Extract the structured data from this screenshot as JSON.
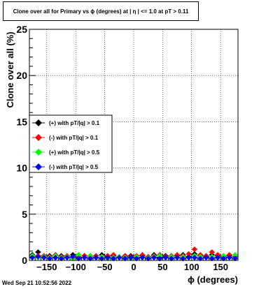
{
  "chart_data": {
    "type": "scatter",
    "title": "Clone  over all for Primary vs ϕ (degrees) at |  η | <= 1.0 at pT > 0.11",
    "xlabel": "ϕ (degrees)",
    "ylabel": "Clone  over all (%)",
    "xlim": [
      -180,
      180
    ],
    "ylim": [
      0,
      25
    ],
    "x_ticks": [
      -150,
      -100,
      -50,
      0,
      50,
      100,
      150
    ],
    "x_tick_labels": [
      "−150",
      "−100",
      "−50",
      "0",
      "50",
      "100",
      "150"
    ],
    "y_ticks": [
      0,
      5,
      10,
      15,
      20,
      25
    ],
    "y_tick_labels": [
      "0",
      "5",
      "10",
      "15",
      "20",
      "25"
    ],
    "grid": true,
    "legend_position": "middle-left",
    "x": [
      -175,
      -165,
      -155,
      -145,
      -135,
      -125,
      -115,
      -105,
      -95,
      -85,
      -75,
      -65,
      -55,
      -45,
      -35,
      -25,
      -15,
      -5,
      5,
      15,
      25,
      35,
      45,
      55,
      65,
      75,
      85,
      95,
      105,
      115,
      125,
      135,
      145,
      155,
      165,
      175
    ],
    "series": [
      {
        "name": "(+) with pT/|q| > 0.1",
        "color": "#000000",
        "values": [
          0.6,
          0.9,
          0.4,
          0.5,
          0.3,
          0.5,
          0.4,
          0.6,
          0.3,
          0.5,
          0.5,
          0.3,
          0.6,
          0.4,
          0.5,
          0.3,
          0.4,
          0.5,
          0.3,
          0.5,
          0.4,
          0.6,
          0.3,
          0.5,
          0.4,
          0.5,
          0.6,
          0.4,
          0.7,
          0.5,
          0.4,
          0.6,
          0.5,
          0.4,
          0.5,
          0.4
        ]
      },
      {
        "name": "(-) with pT/|q| > 0.1",
        "color": "#ff0000",
        "values": [
          0.4,
          0.5,
          0.5,
          0.4,
          0.6,
          0.4,
          0.5,
          0.3,
          0.4,
          0.5,
          0.4,
          0.5,
          0.4,
          0.5,
          0.6,
          0.4,
          0.5,
          0.4,
          0.5,
          0.6,
          0.4,
          0.5,
          0.6,
          0.4,
          0.5,
          0.6,
          0.5,
          0.7,
          1.2,
          0.6,
          0.5,
          0.9,
          0.6,
          0.5,
          0.6,
          0.4
        ]
      },
      {
        "name": "(+) with pT/|q| > 0.5",
        "color": "#00ff00",
        "values": [
          0.5,
          0.3,
          0.4,
          0.3,
          0.5,
          0.3,
          0.4,
          0.2,
          0.6,
          0.3,
          0.5,
          0.3,
          0.4,
          0.2,
          0.3,
          0.4,
          0.3,
          0.2,
          0.4,
          0.3,
          0.3,
          0.4,
          0.5,
          0.3,
          0.4,
          0.3,
          0.4,
          0.3,
          0.5,
          0.4,
          0.3,
          0.4,
          0.3,
          0.5,
          0.3,
          0.6
        ]
      },
      {
        "name": "(-) with pT/|q| > 0.5",
        "color": "#0000ff",
        "values": [
          0.3,
          0.4,
          0.3,
          0.2,
          0.3,
          0.2,
          0.3,
          0.4,
          0.2,
          0.3,
          0.2,
          0.3,
          0.2,
          0.3,
          0.2,
          0.3,
          0.2,
          0.3,
          0.2,
          0.3,
          0.2,
          0.3,
          0.2,
          0.3,
          0.2,
          0.3,
          0.2,
          0.3,
          0.3,
          0.2,
          0.3,
          0.2,
          0.3,
          0.2,
          0.3,
          0.2
        ]
      }
    ]
  },
  "footer": {
    "timestamp": "Wed Sep 21 10:52:56 2022"
  }
}
